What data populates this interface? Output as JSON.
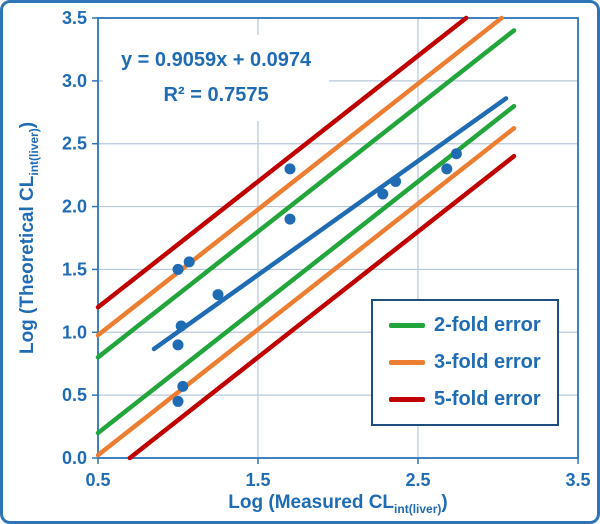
{
  "figure": {
    "border_color": "#2e75b6",
    "background": "#ffffff"
  },
  "annotation": {
    "equation": "y = 0.9059x + 0.0974",
    "r_squared": "R² = 0.7575"
  },
  "axes": {
    "x": {
      "prefix": "Log (Measured CL",
      "sub": "int(liver)",
      "suffix": ")"
    },
    "y": {
      "prefix": "Log (Theoretical CL",
      "sub": "int(liver)",
      "suffix": ")"
    }
  },
  "legend": {
    "items": [
      {
        "label": "2-fold error",
        "color": "#22a63c"
      },
      {
        "label": "3-fold error",
        "color": "#ed7d31"
      },
      {
        "label": "5-fold error",
        "color": "#c00000"
      }
    ]
  },
  "chart_data": {
    "type": "scatter",
    "title": "",
    "xlabel": "Log (Measured CLint(liver))",
    "ylabel": "Log (Theoretical CLint(liver))",
    "xlim": [
      0.5,
      3.5
    ],
    "ylim": [
      0,
      3.5
    ],
    "x_ticks": [
      0.5,
      1.5,
      2.5,
      3.5
    ],
    "y_ticks": [
      0,
      0.5,
      1,
      1.5,
      2,
      2.5,
      3,
      3.5
    ],
    "grid": true,
    "grid_color": "#b7c9dd",
    "axis_color": "#2e75b6",
    "point_color": "#1f6cb5",
    "points": [
      [
        1.0,
        0.45
      ],
      [
        1.03,
        0.57
      ],
      [
        1.0,
        0.9
      ],
      [
        1.02,
        1.05
      ],
      [
        1.0,
        1.5
      ],
      [
        1.07,
        1.56
      ],
      [
        1.25,
        1.3
      ],
      [
        1.7,
        1.9
      ],
      [
        1.7,
        2.3
      ],
      [
        2.28,
        2.1
      ],
      [
        2.36,
        2.2
      ],
      [
        2.68,
        2.3
      ],
      [
        2.74,
        2.42
      ]
    ],
    "regression": {
      "slope": 0.9059,
      "intercept": 0.0974,
      "x_range": [
        0.85,
        3.05
      ],
      "color": "#1f6cb5",
      "equation": "y = 0.9059x + 0.0974",
      "r_squared": 0.7575
    },
    "fold_error_lines": [
      {
        "label": "2-fold error",
        "offset": 0.30103,
        "color": "#22a63c"
      },
      {
        "label": "3-fold error",
        "offset": 0.47712,
        "color": "#ed7d31"
      },
      {
        "label": "5-fold error",
        "offset": 0.69897,
        "color": "#c00000"
      }
    ],
    "fold_x_range": [
      0.5,
      3.1
    ],
    "line_width": 4.5
  }
}
